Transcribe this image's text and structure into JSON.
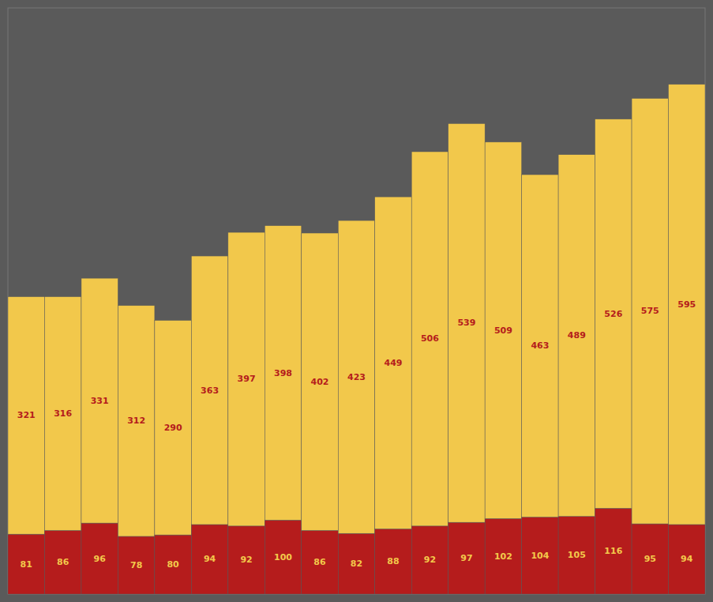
{
  "chart_data": {
    "type": "bar",
    "stacked": true,
    "data_labels": true,
    "tick_labels": false,
    "categories": [
      null,
      null,
      null,
      null,
      null,
      null,
      null,
      null,
      null,
      null,
      null,
      null,
      null,
      null,
      null,
      null,
      null,
      null,
      null
    ],
    "ylim": [
      0,
      792.35
    ],
    "series": [
      {
        "color": "#B51C1C",
        "values": [
          81,
          86,
          96,
          78,
          80,
          94,
          92,
          100,
          86,
          82,
          88,
          92,
          97,
          102,
          104,
          105,
          116,
          95,
          94
        ]
      },
      {
        "color": "#F2C84B",
        "values": [
          321,
          316,
          331,
          312,
          290,
          363,
          397,
          398,
          402,
          423,
          449,
          506,
          539,
          509,
          463,
          489,
          526,
          575,
          595
        ]
      }
    ]
  }
}
